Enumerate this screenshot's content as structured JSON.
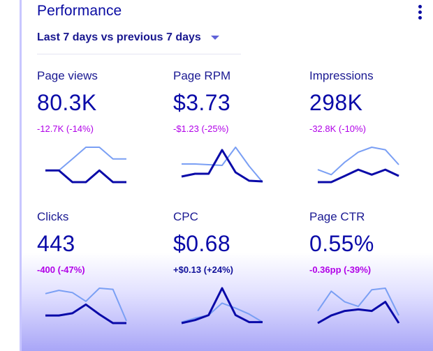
{
  "card": {
    "title": "Performance",
    "date_range": "Last 7 days vs previous 7 days",
    "menu_icon": "more-vert-icon",
    "dropdown_icon": "arrow-drop-down-icon"
  },
  "metrics": [
    {
      "id": "page-views",
      "label": "Page views",
      "value": "80.3K",
      "delta": "-12.7K (-14%)",
      "current": [
        3,
        3,
        2,
        2,
        3,
        2,
        2
      ],
      "previous": [
        3,
        3,
        4,
        5,
        5,
        4,
        4
      ]
    },
    {
      "id": "page-rpm",
      "label": "Page RPM",
      "value": "$3.73",
      "delta": "-$1.23 (-25%)",
      "current": [
        1.8,
        2.2,
        2.2,
        5.6,
        2.4,
        1.2,
        1.1
      ],
      "previous": [
        3.6,
        3.6,
        3.5,
        3.4,
        6.0,
        3.3,
        1.0
      ]
    },
    {
      "id": "impressions",
      "label": "Impressions",
      "value": "298K",
      "delta": "-32.8K (-10%)",
      "current": [
        3,
        3,
        3.5,
        4,
        3.6,
        4,
        3.5
      ],
      "previous": [
        4,
        3.6,
        4.6,
        5.4,
        5.8,
        5.6,
        4.4
      ]
    },
    {
      "id": "clicks",
      "label": "Clicks",
      "value": "443",
      "delta": "-400 (-47%)",
      "current": [
        2.5,
        2.5,
        2.7,
        3.5,
        2.6,
        1.8,
        1.8
      ],
      "previous": [
        4.5,
        4.8,
        4.6,
        3.8,
        5.0,
        4.9,
        2.0
      ]
    },
    {
      "id": "cpc",
      "label": "CPC",
      "value": "$0.68",
      "delta": "+$0.13 (+24%)",
      "current": [
        1.5,
        1.8,
        2.3,
        5.0,
        2.3,
        1.6,
        1.6
      ],
      "previous": [
        1.6,
        2.0,
        2.3,
        3.5,
        3.0,
        2.4,
        1.6
      ]
    },
    {
      "id": "page-ctr",
      "label": "Page CTR",
      "value": "0.55%",
      "delta": "-0.36pp (-39%)",
      "current": [
        1.8,
        2.3,
        2.6,
        2.7,
        2.6,
        3.2,
        1.8
      ],
      "previous": [
        2.6,
        3.9,
        3.2,
        2.9,
        4.0,
        4.1,
        2.3
      ]
    }
  ],
  "colors": {
    "title": "#0a0ba2",
    "negative": "#b100e8",
    "positive": "#10109a",
    "current_line": "#0a0aa8",
    "previous_line": "#7a9ff4"
  }
}
